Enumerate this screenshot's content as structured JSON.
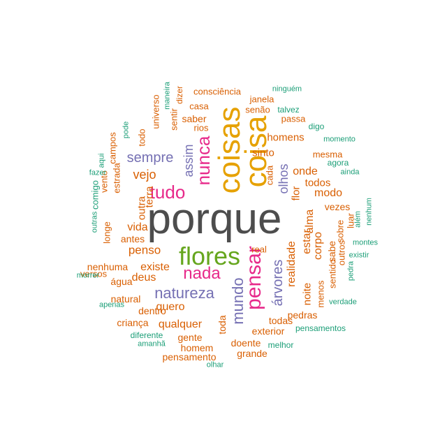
{
  "colors": {
    "gray": "#4d4d4d",
    "gold": "#e6a100",
    "magenta": "#e7298a",
    "green": "#66a61e",
    "purple": "#7570b3",
    "orange": "#d95f02",
    "teal": "#1b9e77"
  },
  "words": [
    "porque",
    "coisas",
    "coisa",
    "flores",
    "nada",
    "pensar",
    "natureza",
    "tudo",
    "nunca",
    "mundo",
    "árvores",
    "sempre",
    "assim",
    "olhos",
    "vejo",
    "sinto",
    "homens",
    "onde",
    "todos",
    "terra",
    "outra",
    "vida",
    "penso",
    "existe",
    "deus",
    "quero",
    "qualquer",
    "estar",
    "alma",
    "corpo",
    "realidade",
    "noite",
    "flor",
    "modo",
    "vezes",
    "cada",
    "mesma",
    "antes",
    "nenhuma",
    "água",
    "natural",
    "dentro",
    "criança",
    "gente",
    "homem",
    "doente",
    "exterior",
    "todas",
    "pedras",
    "real",
    "toda",
    "grande",
    "pensamento",
    "menos",
    "sentido",
    "sabe",
    "outros",
    "sobre",
    "luar",
    "consciência",
    "janela",
    "casa",
    "senão",
    "passa",
    "saber",
    "rios",
    "sentir",
    "dizer",
    "universo",
    "todo",
    "estrada",
    "campos",
    "vento",
    "longe",
    "versos",
    "comigo",
    "ninguém",
    "talvez",
    "digo",
    "momento",
    "agora",
    "ainda",
    "nenhum",
    "além",
    "montes",
    "existir",
    "pedra",
    "verdade",
    "pensamentos",
    "melhor",
    "olhar",
    "amanhã",
    "diferente",
    "apenas",
    "morrer",
    "outras",
    "fazer",
    "aqui",
    "pode",
    "maneira"
  ]
}
